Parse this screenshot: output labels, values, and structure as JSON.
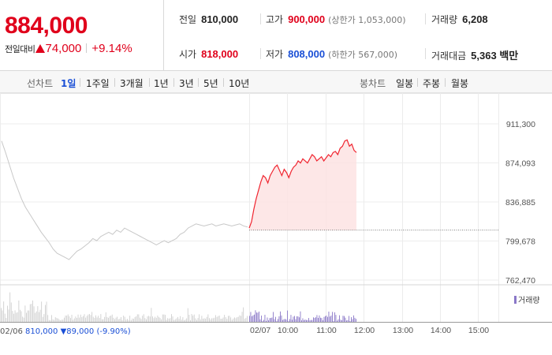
{
  "header": {
    "current_price": "884,000",
    "change_label": "전일대비",
    "change_value": "74,000",
    "change_pct": "+9.14%",
    "stats": {
      "prev_close_label": "전일",
      "prev_close": "810,000",
      "high_label": "고가",
      "high": "900,000",
      "upper_limit": "(상한가 1,053,000)",
      "volume_label": "거래량",
      "volume": "6,208",
      "open_label": "시가",
      "open": "818,000",
      "low_label": "저가",
      "low": "808,000",
      "lower_limit": "(하한가 567,000)",
      "amount_label": "거래대금",
      "amount": "5,363 백만"
    },
    "colors": {
      "up": "#e0001b",
      "down": "#1a4fd6"
    }
  },
  "toolbar": {
    "line_chart_label": "선차트",
    "line_ranges": [
      "1일",
      "1주일",
      "3개월",
      "1년",
      "3년",
      "5년",
      "10년"
    ],
    "active_range": "1일",
    "candle_chart_label": "봉차트",
    "candle_ranges": [
      "일봉",
      "주봉",
      "월봉"
    ]
  },
  "volume_legend": "거래량",
  "footer": {
    "date": "02/06",
    "price": "810,000",
    "change": "▼89,000",
    "pct": "(-9.90%)"
  },
  "chart_data": {
    "type": "line",
    "y_ticks": [
      "911,300",
      "874,093",
      "836,885",
      "799,678",
      "762,470"
    ],
    "ylim": [
      762470,
      911300
    ],
    "x_ticks": [
      "02/06",
      "02/07",
      "10:00",
      "11:00",
      "12:00",
      "13:00",
      "14:00",
      "15:00"
    ],
    "reference_line": 810000,
    "series": [
      {
        "values": [
          895000,
          884000,
          872000,
          860000,
          850000,
          840000,
          832000,
          826000,
          820000,
          814000,
          808000,
          803000,
          798000,
          792000,
          788000,
          786000,
          784000,
          782000,
          786000,
          790000,
          792000,
          795000,
          798000,
          802000,
          800000,
          804000,
          806000,
          808000,
          806000,
          810000,
          808000,
          812000,
          810000,
          808000,
          806000,
          804000,
          802000,
          800000,
          798000,
          796000,
          798000,
          800000,
          798000,
          800000,
          802000,
          806000,
          808000,
          812000,
          814000,
          816000,
          815000,
          814000,
          815000,
          816000,
          814000,
          815000,
          816000,
          815000,
          814000,
          815000,
          816000,
          814000,
          813000
        ]
      },
      {
        "values": [
          812000,
          818000,
          830000,
          840000,
          848000,
          856000,
          862000,
          860000,
          855000,
          862000,
          866000,
          870000,
          872000,
          867000,
          862000,
          868000,
          865000,
          860000,
          866000,
          870000,
          872000,
          876000,
          874000,
          878000,
          876000,
          874000,
          878000,
          882000,
          880000,
          876000,
          878000,
          880000,
          876000,
          879000,
          882000,
          880000,
          884000,
          885000,
          882000,
          888000,
          890000,
          895000,
          896000,
          890000,
          892000,
          886000,
          884000
        ]
      }
    ],
    "grid": true
  }
}
